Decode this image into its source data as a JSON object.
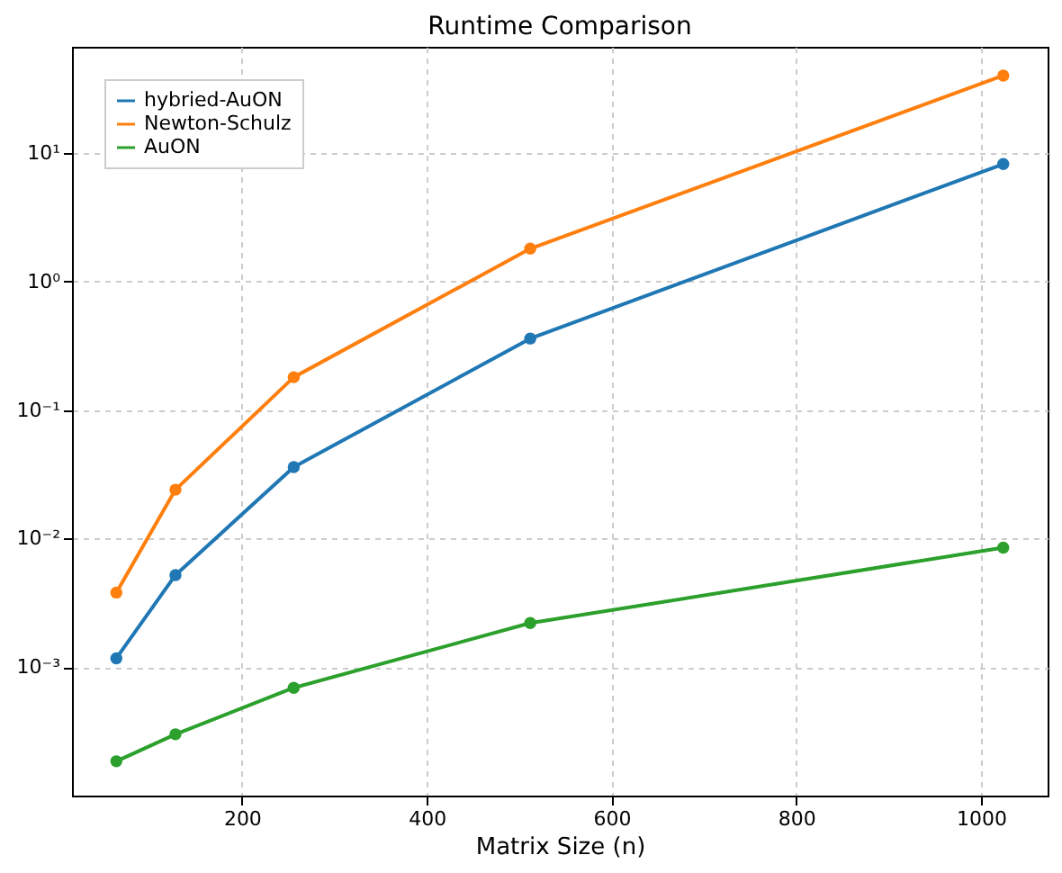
{
  "chart_data": {
    "type": "line",
    "title": "Runtime Comparison",
    "xlabel": "Matrix Size (n)",
    "x": [
      64,
      128,
      256,
      512,
      1024
    ],
    "series": [
      {
        "name": "hybried-AuON",
        "color": "#1f77b4",
        "values": [
          0.00117,
          0.0052,
          0.036,
          0.36,
          8.2
        ]
      },
      {
        "name": "Newton-Schulz",
        "color": "#ff7f0e",
        "values": [
          0.0038,
          0.024,
          0.18,
          1.8,
          40
        ]
      },
      {
        "name": "AuON",
        "color": "#2ca02c",
        "values": [
          0.000185,
          0.0003,
          0.00069,
          0.0022,
          0.0085
        ]
      }
    ],
    "log": "y",
    "xlim": [
      16,
      1072
    ],
    "ylim": [
      0.0001,
      67
    ],
    "xticks": [
      200,
      400,
      600,
      800,
      1000
    ],
    "yticks": [
      {
        "value": 0.001,
        "label": "10⁻³"
      },
      {
        "value": 0.01,
        "label": "10⁻²"
      },
      {
        "value": 0.1,
        "label": "10⁻¹"
      },
      {
        "value": 1,
        "label": "10⁰"
      },
      {
        "value": 10,
        "label": "10¹"
      }
    ],
    "grid": true,
    "legend": "top left",
    "marker": "circle",
    "line_style": "solid"
  }
}
